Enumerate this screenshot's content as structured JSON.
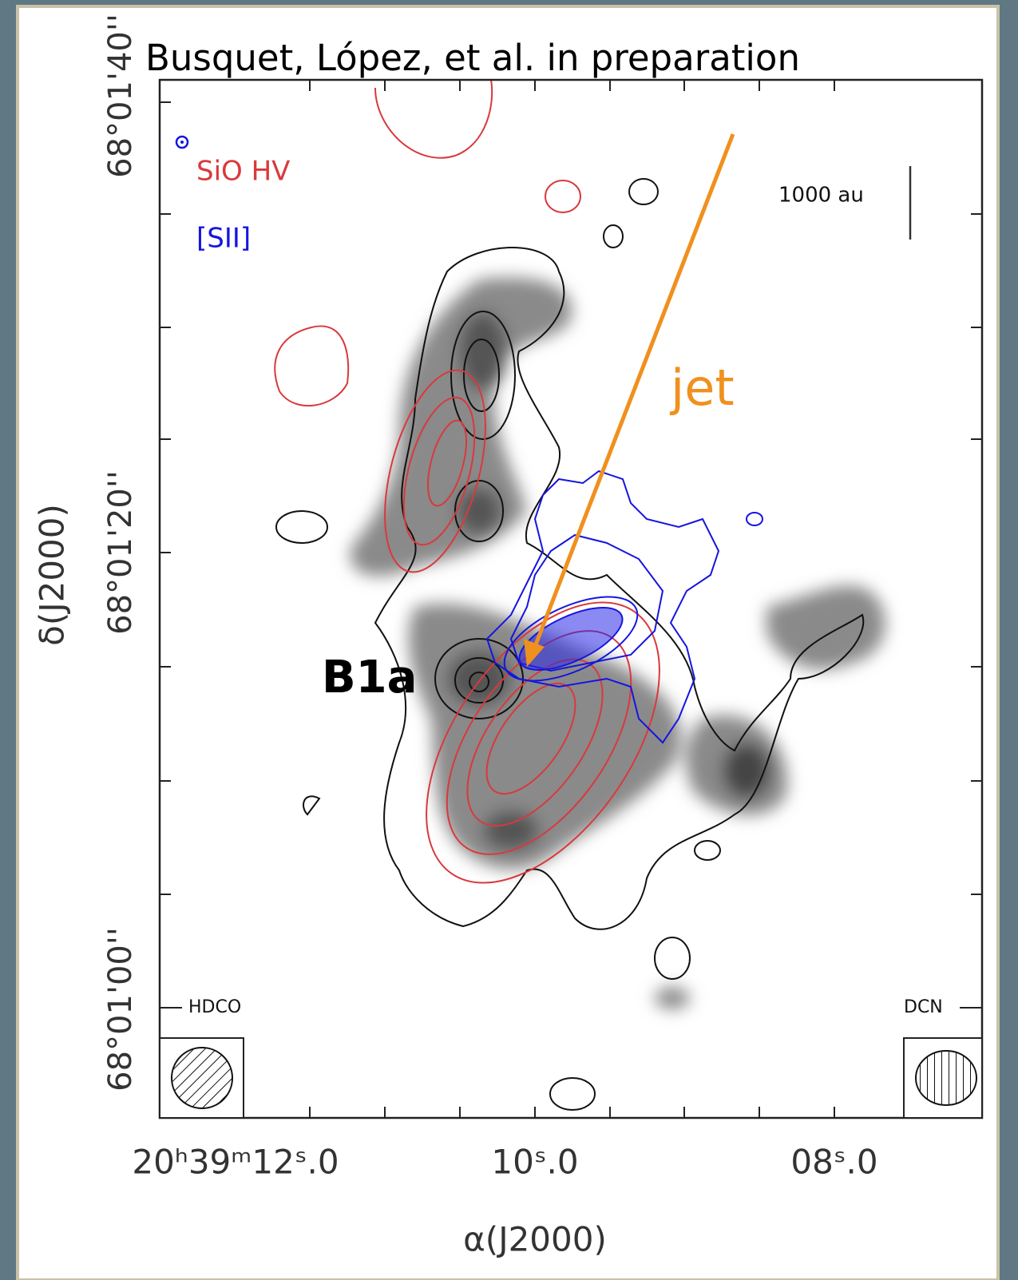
{
  "header": {
    "title": "Busquet, López, et al. in preparation"
  },
  "legend": [
    "SiO HV",
    "[SII]"
  ],
  "scale_bar": "1000 au",
  "annotations": {
    "jet": "jet",
    "source": "B1a"
  },
  "panel_labels": [
    "HDCO",
    "DCN"
  ],
  "y_axis": {
    "label": "δ(J2000)",
    "ticks": [
      "68°01'40''",
      "68°01'20''",
      "68°01'00''"
    ]
  },
  "x_axis": {
    "label": "α(J2000)",
    "ticks": [
      "20ʰ39ᵐ12ˢ.0",
      "10ˢ.0",
      "08ˢ.0"
    ]
  }
}
